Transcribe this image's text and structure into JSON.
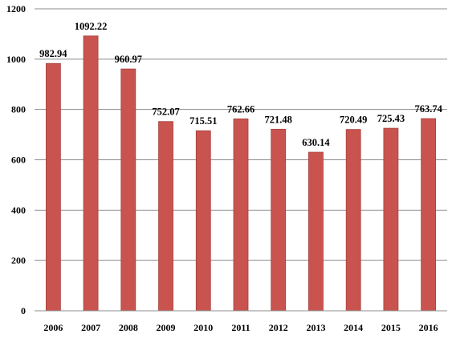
{
  "chart_data": {
    "type": "bar",
    "categories": [
      "2006",
      "2007",
      "2008",
      "2009",
      "2010",
      "2011",
      "2012",
      "2013",
      "2014",
      "2015",
      "2016"
    ],
    "values": [
      982.94,
      1092.22,
      960.97,
      752.07,
      715.51,
      762.66,
      721.48,
      630.14,
      720.49,
      725.43,
      763.74
    ],
    "data_labels": [
      "982.94",
      "1092.22",
      "960.97",
      "752.07",
      "715.51",
      "762.66",
      "721.48",
      "630.14",
      "720.49",
      "725.43",
      "763.74"
    ],
    "y_ticks": [
      0,
      200,
      400,
      600,
      800,
      1000,
      1200
    ],
    "y_tick_labels": [
      "0",
      "200",
      "400",
      "600",
      "800",
      "1000",
      "1200"
    ],
    "ylim": [
      0,
      1200
    ],
    "title": "",
    "xlabel": "",
    "ylabel": "",
    "grid": true,
    "legend": "none",
    "colors": {
      "bar_fill": "#c9544f",
      "bar_stroke": "#a83f3b",
      "gridline": "#8c8c8c",
      "axis": "#8c8c8c",
      "text": "#000000"
    }
  }
}
